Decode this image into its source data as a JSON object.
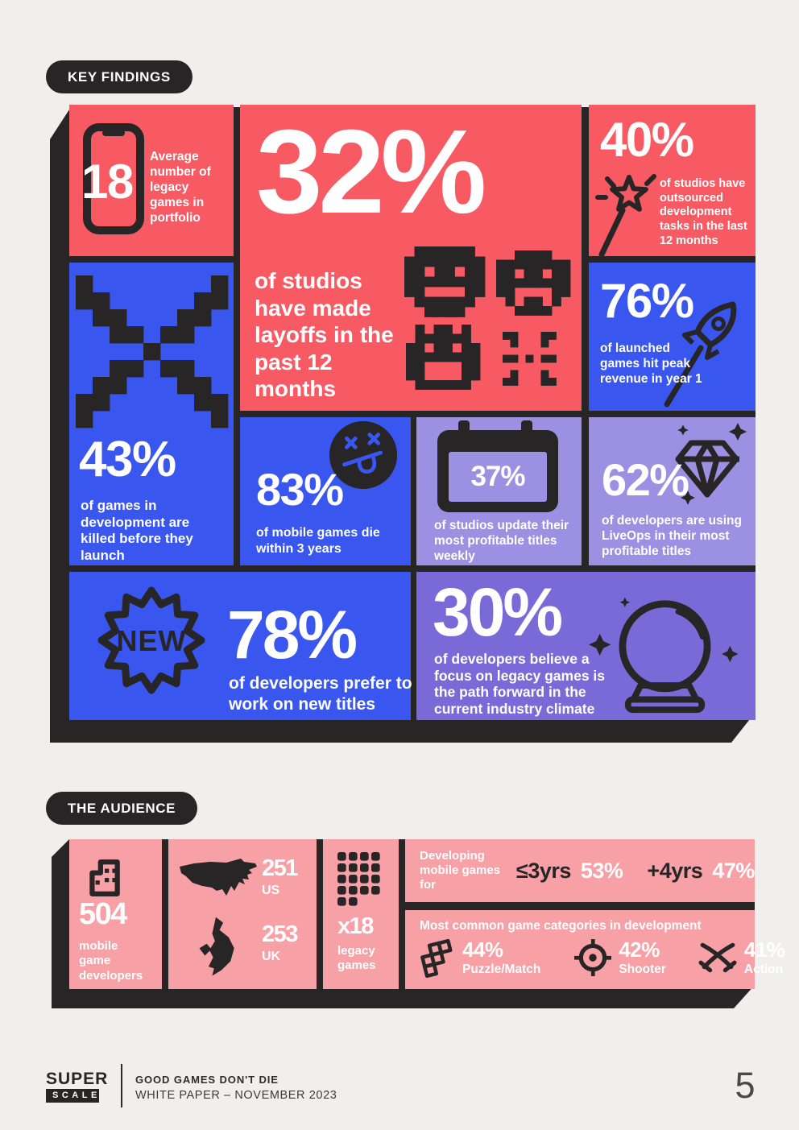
{
  "badges": {
    "key_findings": "KEY FINDINGS",
    "audience": "THE AUDIENCE"
  },
  "colors": {
    "ink": "#272525",
    "red": "#F75A62",
    "blue": "#3956EF",
    "lavender": "#9B90E2",
    "purple": "#7A6AD8",
    "pink": "#F7A0A6",
    "background": "#F0EFED"
  },
  "key_findings": {
    "tiles": [
      {
        "id": "legacy-portfolio",
        "stat": "18",
        "text": "Average number of legacy games in portfolio",
        "icon": "smartphone-icon"
      },
      {
        "id": "layoffs",
        "stat": "32%",
        "text": "of studios have made layoffs in the past 12 months",
        "icon": "pixel-faces-icon"
      },
      {
        "id": "outsourcing",
        "stat": "40%",
        "text": "of studios have outsourced development tasks in the last 12 months",
        "icon": "magic-wand-icon"
      },
      {
        "id": "peak-revenue",
        "stat": "76%",
        "text": "of launched games hit peak revenue in year 1",
        "icon": "rocket-icon"
      },
      {
        "id": "killed-games",
        "stat": "43%",
        "text": "of games in development are killed before they launch",
        "icon": "pixel-x-icon"
      },
      {
        "id": "mobile-games-die",
        "stat": "83%",
        "text": "of mobile games die within 3 years",
        "icon": "dead-face-icon"
      },
      {
        "id": "weekly-updates",
        "stat": "37%",
        "text": "of studios update their most profitable titles weekly",
        "icon": "calendar-icon"
      },
      {
        "id": "liveops",
        "stat": "62%",
        "text": "of developers are using LiveOps in their most profitable titles",
        "icon": "diamond-icon"
      },
      {
        "id": "new-titles",
        "stat": "78%",
        "badge": "NEW",
        "text": "of developers prefer to work on new titles",
        "icon": "new-burst-icon"
      },
      {
        "id": "legacy-path",
        "stat": "30%",
        "text": "of developers believe a focus on legacy games is the path forward in the current industry climate",
        "icon": "crystal-ball-icon"
      }
    ]
  },
  "audience": {
    "developers": {
      "stat": "504",
      "text": "mobile game developers",
      "icon": "building-icon"
    },
    "countries": [
      {
        "stat": "251",
        "label": "US",
        "icon": "us-map-icon"
      },
      {
        "stat": "253",
        "label": "UK",
        "icon": "uk-map-icon"
      }
    ],
    "legacy_games": {
      "stat": "x18",
      "text": "legacy games",
      "icon": "pixel-grid-icon"
    },
    "experience": {
      "label": "Developing mobile games for",
      "items": [
        {
          "range": "≤3yrs",
          "value": "53%"
        },
        {
          "range": "+4yrs",
          "value": "47%"
        }
      ]
    },
    "categories": {
      "heading": "Most common game categories in development",
      "items": [
        {
          "value": "44%",
          "label": "Puzzle/Match",
          "icon": "puzzle-icon"
        },
        {
          "value": "42%",
          "label": "Shooter",
          "icon": "target-icon"
        },
        {
          "value": "41%",
          "label": "Action",
          "icon": "swords-icon"
        }
      ]
    }
  },
  "footer": {
    "brand_line1": "SUPER",
    "brand_line2": "SCALE",
    "doc_title": "GOOD GAMES DON'T DIE",
    "doc_subtitle": "WHITE PAPER – NOVEMBER 2023",
    "page_number": "5"
  }
}
